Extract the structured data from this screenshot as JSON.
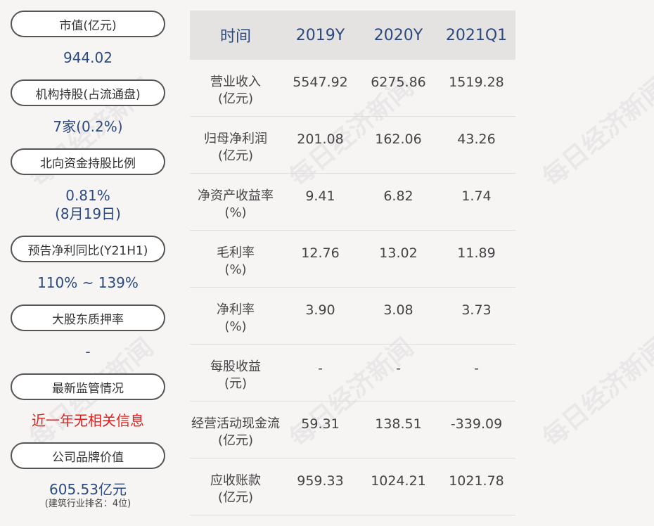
{
  "left_panel": [
    {
      "label": "市值(亿元)",
      "value": "944.02"
    },
    {
      "label": "机构持股(占流通盘)",
      "value": "7家(0.2%)"
    },
    {
      "label": "北向资金持股比例",
      "value": "0.81%",
      "value2": "(8月19日)"
    },
    {
      "label": "预告净利同比(Y21H1)",
      "value": "110% ~ 139%"
    },
    {
      "label": "大股东质押率",
      "value": "-"
    },
    {
      "label": "最新监管情况",
      "value": "近一年无相关信息"
    },
    {
      "label": "公司品牌价值",
      "value": "605.53亿元",
      "sub": "(建筑行业排名：4位)"
    }
  ],
  "table": {
    "headers": [
      "时间",
      "2019Y",
      "2020Y",
      "2021Q1"
    ],
    "rows": [
      {
        "name": "营业收入",
        "unit": "(亿元)",
        "values": [
          "5547.92",
          "6275.86",
          "1519.28"
        ]
      },
      {
        "name": "归母净利润",
        "unit": "(亿元)",
        "values": [
          "201.08",
          "162.06",
          "43.26"
        ]
      },
      {
        "name": "净资产收益率",
        "unit": "(%)",
        "values": [
          "9.41",
          "6.82",
          "1.74"
        ]
      },
      {
        "name": "毛利率",
        "unit": "(%)",
        "values": [
          "12.76",
          "13.02",
          "11.89"
        ]
      },
      {
        "name": "净利率",
        "unit": "(%)",
        "values": [
          "3.90",
          "3.08",
          "3.73"
        ]
      },
      {
        "name": "每股收益",
        "unit": "(元)",
        "values": [
          "-",
          "-",
          "-"
        ]
      },
      {
        "name": "经营活动现金流",
        "unit": "(亿元)",
        "values": [
          "59.31",
          "138.51",
          "-339.09"
        ]
      },
      {
        "name": "应收账款",
        "unit": "(亿元)",
        "values": [
          "959.33",
          "1024.21",
          "1021.78"
        ]
      }
    ]
  },
  "watermark": "每日经济新闻",
  "colors": {
    "value_blue": "#2a4a7f",
    "alert_red": "#e0201d",
    "header_bg": "#e5e2e2"
  }
}
